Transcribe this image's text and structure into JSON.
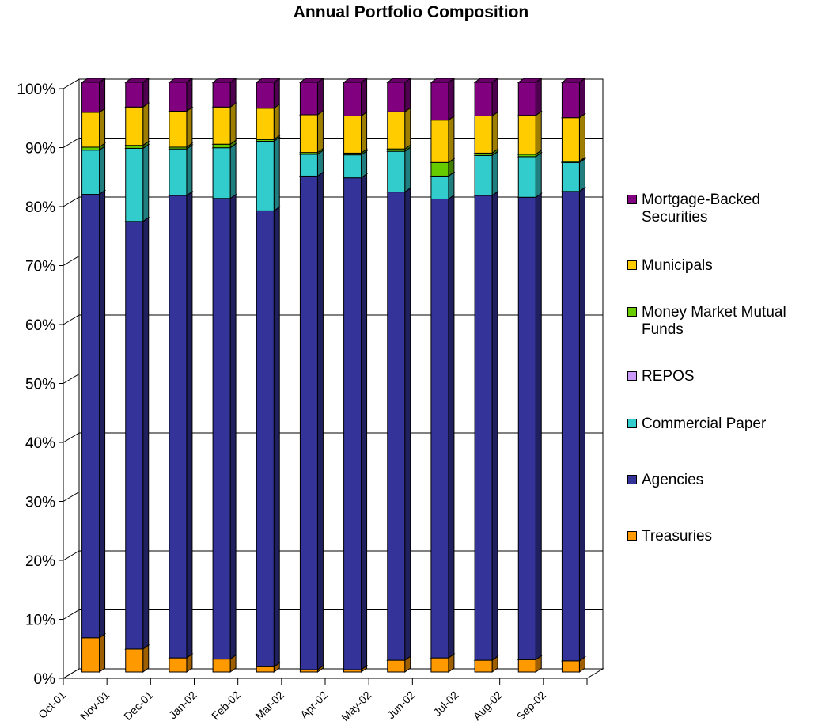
{
  "chart_data": {
    "type": "bar",
    "stacked": true,
    "percent": true,
    "three_d": true,
    "title": "Annual Portfolio Composition",
    "categories": [
      "Oct-01",
      "Nov-01",
      "Dec-01",
      "Jan-02",
      "Feb-02",
      "Mar-02",
      "Apr-02",
      "May-02",
      "Jun-02",
      "Jul-02",
      "Aug-02",
      "Sep-02"
    ],
    "ylim": [
      0,
      100
    ],
    "yticks": [
      "0%",
      "10%",
      "20%",
      "30%",
      "40%",
      "50%",
      "60%",
      "70%",
      "80%",
      "90%",
      "100%"
    ],
    "grid": true,
    "legend_position": "right",
    "series": [
      {
        "name": "Treasuries",
        "color": "#FF9900",
        "values": [
          5.8,
          3.9,
          2.4,
          2.2,
          0.9,
          0.4,
          0.4,
          2.0,
          2.4,
          2.0,
          2.1,
          1.9
        ]
      },
      {
        "name": "Agencies",
        "color": "#333399",
        "values": [
          75.2,
          72.5,
          78.4,
          78.1,
          77.3,
          83.7,
          83.4,
          79.4,
          77.8,
          78.8,
          78.4,
          79.6
        ]
      },
      {
        "name": "Commercial Paper",
        "color": "#33CCCC",
        "values": [
          7.5,
          12.4,
          7.9,
          8.6,
          11.8,
          3.7,
          3.9,
          6.9,
          3.9,
          6.8,
          6.9,
          4.9
        ]
      },
      {
        "name": "REPOS",
        "color": "#CC99FF",
        "values": [
          0,
          0,
          0,
          0,
          0,
          0,
          0,
          0,
          0,
          0,
          0,
          0
        ]
      },
      {
        "name": "Money Market Mutual Funds",
        "color": "#66CC00",
        "values": [
          0.5,
          0.5,
          0.3,
          0.6,
          0.3,
          0.3,
          0.3,
          0.4,
          2.3,
          0.4,
          0.4,
          0.2
        ]
      },
      {
        "name": "Municipals",
        "color": "#FFCC00",
        "values": [
          5.9,
          6.5,
          6.1,
          6.3,
          5.3,
          6.4,
          6.3,
          6.3,
          7.2,
          6.3,
          6.6,
          7.4
        ]
      },
      {
        "name": "Mortgage-Backed Securities",
        "color": "#800080",
        "values": [
          5.1,
          4.2,
          4.9,
          4.2,
          4.4,
          5.5,
          5.7,
          5.0,
          6.4,
          5.7,
          5.6,
          6.0
        ]
      }
    ],
    "legend_order": [
      "Mortgage-Backed Securities",
      "Municipals",
      "Money Market Mutual Funds",
      "REPOS",
      "Commercial Paper",
      "Agencies",
      "Treasuries"
    ]
  }
}
